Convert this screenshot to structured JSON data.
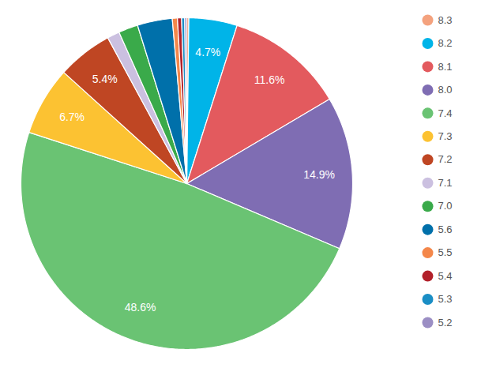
{
  "chart_data": {
    "type": "pie",
    "categories": [
      "8.3",
      "8.2",
      "8.1",
      "8.0",
      "7.4",
      "7.3",
      "7.2",
      "7.1",
      "7.0",
      "5.6",
      "5.5",
      "5.4",
      "5.3",
      "5.2"
    ],
    "values": [
      0.2,
      4.7,
      11.6,
      14.9,
      48.6,
      6.7,
      5.4,
      1.2,
      1.9,
      3.4,
      0.5,
      0.4,
      0.3,
      0.2
    ],
    "value_labels": [
      null,
      "4.7%",
      "11.6%",
      "14.9%",
      "48.6%",
      "6.7%",
      "5.4%",
      null,
      null,
      null,
      null,
      null,
      null,
      null
    ],
    "colors": [
      "#f4a27e",
      "#00b4e8",
      "#e35a5e",
      "#7f6db3",
      "#6ac373",
      "#fcc232",
      "#bf4623",
      "#cbc0e0",
      "#3aaa4a",
      "#0070aa",
      "#f4874a",
      "#b2202a",
      "#1a8ec5",
      "#9b8ec4"
    ],
    "data_labels": true,
    "legend": "right"
  }
}
